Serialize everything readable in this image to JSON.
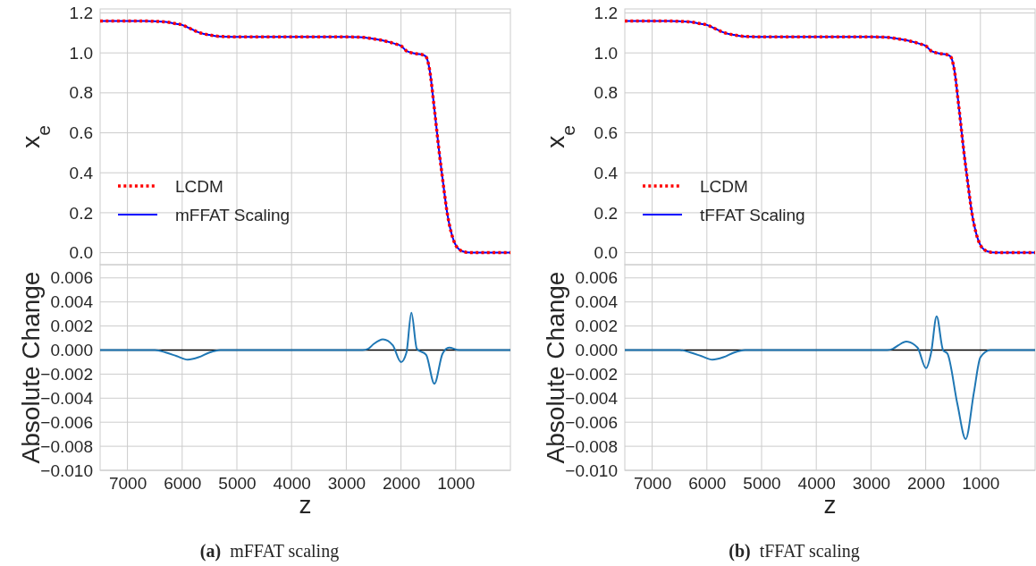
{
  "chart_data": [
    {
      "type": "line",
      "ylabel": "x$_{e}$",
      "xlim": [
        7500,
        0
      ],
      "xticks": [
        7000,
        6000,
        5000,
        4000,
        3000,
        2000,
        1000
      ],
      "ylim": [
        -0.06,
        1.22
      ],
      "yticks": [
        {
          "value": 0,
          "label": "0.0"
        },
        0.2,
        0.4,
        0.6,
        0.8,
        {
          "value": 1,
          "label": "1.0"
        },
        1.2
      ],
      "tick_labels": "y",
      "grid": true,
      "legend": "bottom left",
      "x": [
        7500,
        7000,
        6700,
        6500,
        6300,
        6100,
        6000,
        5900,
        5800,
        5700,
        5600,
        5500,
        5400,
        5200,
        5000,
        4000,
        3000,
        2800,
        2700,
        2500,
        2300,
        2100,
        2000,
        1900,
        1800,
        1700,
        1600,
        1540,
        1480,
        1390,
        1300,
        1240,
        1150,
        1060,
        940,
        800,
        600,
        400,
        200,
        0
      ],
      "series": [
        {
          "name": "LCDM",
          "color": "#ff0000",
          "line_style": "dotted",
          "values": [
            1.16,
            1.16,
            1.16,
            1.158,
            1.155,
            1.145,
            1.14,
            1.128,
            1.115,
            1.103,
            1.095,
            1.09,
            1.085,
            1.081,
            1.08,
            1.08,
            1.08,
            1.079,
            1.078,
            1.07,
            1.06,
            1.045,
            1.035,
            1.01,
            1.0,
            0.995,
            0.99,
            0.98,
            0.92,
            0.72,
            0.5,
            0.37,
            0.19,
            0.08,
            0.017,
            0.002,
            0,
            0,
            0,
            0
          ]
        },
        {
          "name": "mFFAT Scaling",
          "color": "#0000ff",
          "line_style": "solid",
          "values": [
            1.16,
            1.16,
            1.16,
            1.158,
            1.155,
            1.145,
            1.14,
            1.128,
            1.115,
            1.103,
            1.095,
            1.09,
            1.085,
            1.081,
            1.08,
            1.08,
            1.08,
            1.079,
            1.078,
            1.07,
            1.06,
            1.045,
            1.035,
            1.01,
            1.0,
            0.995,
            0.99,
            0.98,
            0.92,
            0.72,
            0.5,
            0.37,
            0.19,
            0.08,
            0.017,
            0.002,
            0,
            0,
            0,
            0
          ]
        }
      ]
    },
    {
      "type": "line",
      "xlabel": "z",
      "ylabel": "Absolute Change",
      "annotations": [
        "(a) mFFAT scaling"
      ],
      "xlim": [
        7500,
        0
      ],
      "xticks": [
        7000,
        6000,
        5000,
        4000,
        3000,
        2000,
        1000
      ],
      "ylim": [
        -0.01,
        0.0071
      ],
      "yticks": [
        {
          "value": -0.01,
          "label": "−0.010"
        },
        {
          "value": -0.008,
          "label": "−0.008"
        },
        {
          "value": -0.006,
          "label": "−0.006"
        },
        {
          "value": -0.004,
          "label": "−0.004"
        },
        {
          "value": -0.002,
          "label": "−0.002"
        },
        {
          "value": 0,
          "label": "0.000"
        },
        0.002,
        0.004,
        0.006
      ],
      "grid": true,
      "ref_lines": [
        {
          "axis": "y",
          "value": 0,
          "color": "#000000"
        }
      ],
      "x": [
        7500,
        6700,
        6500,
        6300,
        6100,
        5900,
        5700,
        5500,
        5300,
        5000,
        2800,
        2700,
        2600,
        2500,
        2330,
        2150,
        2000,
        1900,
        1810,
        1710,
        1540,
        1390,
        1240,
        1120,
        940,
        800,
        0
      ],
      "series": [
        {
          "color": "#1f77b4",
          "values": [
            0,
            0,
            0,
            -0.0002,
            -0.0005,
            -0.0008,
            -0.0006,
            -0.0002,
            0,
            0,
            0,
            0,
            0.0001,
            0.0005,
            0.0009,
            0.0004,
            -0.001,
            -0.0002,
            0.0031,
            0.0001,
            -0.0004,
            -0.0028,
            -0.0003,
            0.0002,
            0,
            0,
            0
          ]
        }
      ]
    },
    {
      "type": "line",
      "ylabel": "x$_{e}$",
      "xlim": [
        7500,
        0
      ],
      "xticks": [
        7000,
        6000,
        5000,
        4000,
        3000,
        2000,
        1000
      ],
      "ylim": [
        -0.06,
        1.22
      ],
      "yticks": [
        {
          "value": 0,
          "label": "0.0"
        },
        0.2,
        0.4,
        0.6,
        0.8,
        {
          "value": 1,
          "label": "1.0"
        },
        1.2
      ],
      "tick_labels": "y",
      "grid": true,
      "legend": "bottom left",
      "x": [
        7500,
        7000,
        6700,
        6500,
        6300,
        6100,
        6000,
        5900,
        5800,
        5700,
        5600,
        5500,
        5400,
        5200,
        5000,
        4000,
        3000,
        2800,
        2700,
        2500,
        2300,
        2100,
        2000,
        1900,
        1800,
        1700,
        1600,
        1540,
        1480,
        1390,
        1300,
        1240,
        1150,
        1060,
        940,
        800,
        600,
        400,
        200,
        0
      ],
      "series": [
        {
          "name": "LCDM",
          "color": "#ff0000",
          "line_style": "dotted",
          "values": [
            1.16,
            1.16,
            1.16,
            1.158,
            1.155,
            1.145,
            1.14,
            1.128,
            1.115,
            1.103,
            1.095,
            1.09,
            1.085,
            1.081,
            1.08,
            1.08,
            1.08,
            1.079,
            1.078,
            1.07,
            1.06,
            1.045,
            1.035,
            1.01,
            1.0,
            0.995,
            0.99,
            0.98,
            0.92,
            0.72,
            0.5,
            0.37,
            0.19,
            0.08,
            0.017,
            0.002,
            0,
            0,
            0,
            0
          ]
        },
        {
          "name": "tFFAT Scaling",
          "color": "#0000ff",
          "line_style": "solid",
          "values": [
            1.16,
            1.16,
            1.16,
            1.158,
            1.155,
            1.145,
            1.14,
            1.128,
            1.115,
            1.103,
            1.095,
            1.09,
            1.085,
            1.081,
            1.08,
            1.08,
            1.08,
            1.079,
            1.078,
            1.07,
            1.06,
            1.045,
            1.035,
            1.01,
            1.0,
            0.995,
            0.99,
            0.98,
            0.92,
            0.72,
            0.5,
            0.37,
            0.19,
            0.08,
            0.017,
            0.002,
            0,
            0,
            0,
            0
          ]
        }
      ]
    },
    {
      "type": "line",
      "xlabel": "z",
      "ylabel": "Absolute Change",
      "annotations": [
        "(b) tFFAT scaling"
      ],
      "xlim": [
        7500,
        0
      ],
      "xticks": [
        7000,
        6000,
        5000,
        4000,
        3000,
        2000,
        1000
      ],
      "ylim": [
        -0.01,
        0.0071
      ],
      "yticks": [
        {
          "value": -0.01,
          "label": "−0.010"
        },
        {
          "value": -0.008,
          "label": "−0.008"
        },
        {
          "value": -0.006,
          "label": "−0.006"
        },
        {
          "value": -0.004,
          "label": "−0.004"
        },
        {
          "value": -0.002,
          "label": "−0.002"
        },
        {
          "value": 0,
          "label": "0.000"
        },
        0.002,
        0.004,
        0.006
      ],
      "grid": true,
      "ref_lines": [
        {
          "axis": "y",
          "value": 0,
          "color": "#000000"
        }
      ],
      "x": [
        7500,
        6700,
        6500,
        6300,
        6100,
        5900,
        5700,
        5500,
        5300,
        5000,
        2800,
        2700,
        2600,
        2500,
        2355,
        2150,
        1994,
        1900,
        1800,
        1683,
        1602,
        1420,
        1269,
        1118,
        1000,
        818,
        0
      ],
      "series": [
        {
          "color": "#1f77b4",
          "values": [
            0,
            0,
            0,
            -0.0002,
            -0.0005,
            -0.0008,
            -0.0006,
            -0.0002,
            0,
            0,
            0,
            0,
            0.0001,
            0.0004,
            0.0007,
            0.0002,
            -0.0015,
            -0.0002,
            0.0028,
            0,
            -0.0003,
            -0.0045,
            -0.0074,
            -0.0035,
            -0.0006,
            0,
            0
          ]
        }
      ]
    }
  ]
}
